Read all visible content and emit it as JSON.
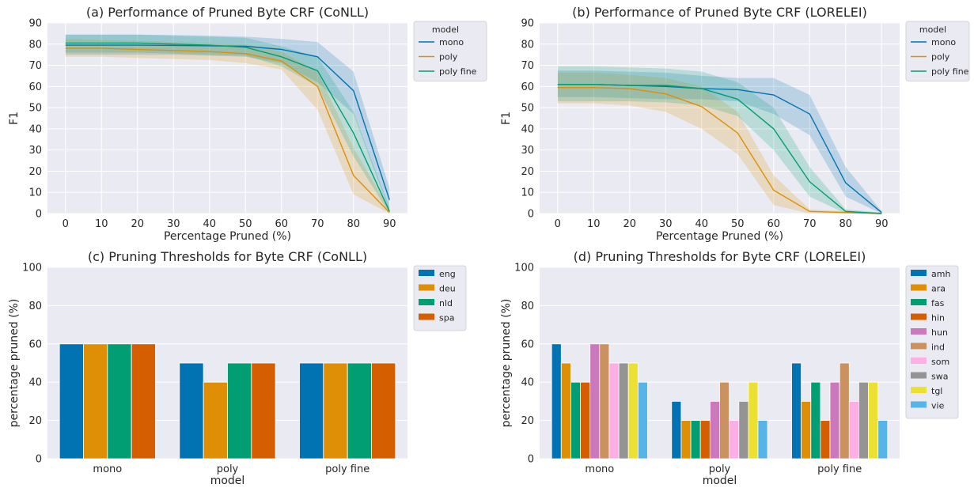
{
  "palette": [
    "#0173b2",
    "#de8f05",
    "#029e73",
    "#d55e00",
    "#cc78bc",
    "#ca9161",
    "#fbafe4",
    "#949494",
    "#ece133",
    "#56b4e9"
  ],
  "chart_data": [
    {
      "id": "a",
      "type": "line",
      "title": "(a) Performance of Pruned Byte CRF (CoNLL)",
      "xlabel": "Percentage Pruned (%)",
      "ylabel": "F1",
      "x": [
        0,
        10,
        20,
        30,
        40,
        50,
        60,
        70,
        80,
        90
      ],
      "xlim": [
        -5,
        95
      ],
      "ylim": [
        0,
        90
      ],
      "xticks": [
        0,
        10,
        20,
        30,
        40,
        50,
        60,
        70,
        80,
        90
      ],
      "yticks": [
        0,
        10,
        20,
        30,
        40,
        50,
        60,
        70,
        80,
        90
      ],
      "grid": true,
      "legend_title": "model",
      "legend_position": "outside top-right",
      "series": [
        {
          "name": "mono",
          "values": [
            79.5,
            79.5,
            79.5,
            79.4,
            79.2,
            79,
            77.5,
            74,
            58,
            6.5
          ],
          "lower": [
            75,
            75,
            75,
            75,
            74.5,
            74,
            71,
            62,
            47,
            1
          ],
          "upper": [
            84.5,
            84.5,
            84.5,
            84.3,
            84,
            83.5,
            82.5,
            81,
            67,
            12
          ]
        },
        {
          "name": "poly",
          "values": [
            78,
            78,
            77.5,
            77,
            76.5,
            75.5,
            72,
            60,
            18,
            0.5
          ],
          "lower": [
            74,
            74,
            73.5,
            73,
            72.5,
            71,
            68,
            49,
            9,
            0
          ],
          "upper": [
            82.5,
            82,
            81.5,
            81,
            80.5,
            80,
            76.5,
            67,
            31,
            2
          ]
        },
        {
          "name": "poly fine",
          "values": [
            80.5,
            80.5,
            80.5,
            80,
            79.5,
            78.5,
            74,
            67.5,
            38,
            1
          ],
          "lower": [
            76,
            76,
            76,
            75.5,
            75,
            74.5,
            69.5,
            60,
            27,
            0
          ],
          "upper": [
            84.5,
            84.5,
            84.5,
            84,
            83.5,
            83,
            79,
            74,
            48,
            3
          ]
        }
      ]
    },
    {
      "id": "b",
      "type": "line",
      "title": "(b) Performance of Pruned Byte CRF (LORELEI)",
      "xlabel": "Percentage Pruned (%)",
      "ylabel": "F1",
      "x": [
        0,
        10,
        20,
        30,
        40,
        50,
        60,
        70,
        80,
        90
      ],
      "xlim": [
        -5,
        95
      ],
      "ylim": [
        0,
        90
      ],
      "xticks": [
        0,
        10,
        20,
        30,
        40,
        50,
        60,
        70,
        80,
        90
      ],
      "yticks": [
        0,
        10,
        20,
        30,
        40,
        50,
        60,
        70,
        80,
        90
      ],
      "grid": true,
      "legend_title": "model",
      "legend_position": "outside top-right",
      "series": [
        {
          "name": "mono",
          "values": [
            61,
            61,
            60.5,
            60,
            59,
            58.5,
            56,
            47,
            14.5,
            0.5
          ],
          "lower": [
            55,
            55,
            54.5,
            54,
            54,
            53,
            47,
            37,
            8,
            0
          ],
          "upper": [
            67.5,
            67.5,
            67,
            66.5,
            65,
            64,
            64,
            56,
            22,
            1
          ]
        },
        {
          "name": "poly",
          "values": [
            59.5,
            59.5,
            59,
            56.5,
            50.5,
            38,
            11,
            1,
            0.5,
            0
          ],
          "lower": [
            52,
            52,
            51,
            48,
            40,
            28,
            4,
            0,
            0,
            0
          ],
          "upper": [
            66.5,
            66.5,
            65.5,
            64,
            60,
            48,
            18,
            2,
            1,
            0.5
          ]
        },
        {
          "name": "poly fine",
          "values": [
            61,
            61,
            60.5,
            60.5,
            59,
            54,
            40,
            15,
            1,
            0
          ],
          "lower": [
            53,
            53,
            53,
            52.5,
            51,
            46,
            30,
            8,
            0,
            0
          ],
          "upper": [
            69.5,
            69.5,
            69,
            68.5,
            67,
            62,
            50,
            22,
            2,
            0.5
          ]
        }
      ]
    },
    {
      "id": "c",
      "type": "bar",
      "title": "(c) Pruning Thresholds for Byte CRF (CoNLL)",
      "xlabel": "model",
      "ylabel": "percentage pruned (%)",
      "categories": [
        "mono",
        "poly",
        "poly fine"
      ],
      "ylim": [
        0,
        100
      ],
      "yticks": [
        0,
        20,
        40,
        60,
        80,
        100
      ],
      "grid": true,
      "legend_position": "outside top-right",
      "series": [
        {
          "name": "eng",
          "values": [
            60,
            50,
            50
          ]
        },
        {
          "name": "deu",
          "values": [
            60,
            40,
            50
          ]
        },
        {
          "name": "nld",
          "values": [
            60,
            50,
            50
          ]
        },
        {
          "name": "spa",
          "values": [
            60,
            50,
            50
          ]
        }
      ]
    },
    {
      "id": "d",
      "type": "bar",
      "title": "(d) Pruning Thresholds for Byte CRF (LORELEI)",
      "xlabel": "model",
      "ylabel": "percentage pruned (%)",
      "categories": [
        "mono",
        "poly",
        "poly fine"
      ],
      "ylim": [
        0,
        100
      ],
      "yticks": [
        0,
        20,
        40,
        60,
        80,
        100
      ],
      "grid": true,
      "legend_position": "outside top-right",
      "series": [
        {
          "name": "amh",
          "values": [
            60,
            30,
            50
          ]
        },
        {
          "name": "ara",
          "values": [
            50,
            20,
            30
          ]
        },
        {
          "name": "fas",
          "values": [
            40,
            20,
            40
          ]
        },
        {
          "name": "hin",
          "values": [
            40,
            20,
            20
          ]
        },
        {
          "name": "hun",
          "values": [
            60,
            30,
            40
          ]
        },
        {
          "name": "ind",
          "values": [
            60,
            40,
            50
          ]
        },
        {
          "name": "som",
          "values": [
            50,
            20,
            30
          ]
        },
        {
          "name": "swa",
          "values": [
            50,
            30,
            40
          ]
        },
        {
          "name": "tgl",
          "values": [
            50,
            40,
            40
          ]
        },
        {
          "name": "vie",
          "values": [
            40,
            20,
            20
          ]
        }
      ]
    }
  ]
}
